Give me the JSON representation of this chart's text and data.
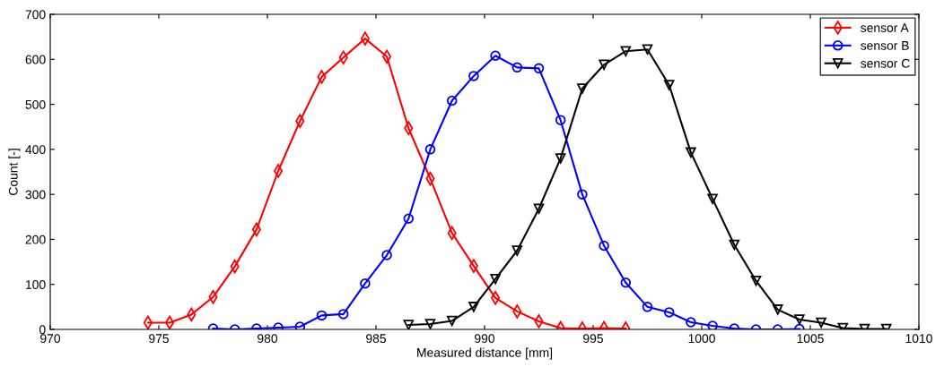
{
  "chart_data": {
    "type": "line",
    "xlabel": "Measured distance [mm]",
    "ylabel": "Count [-]",
    "xlim": [
      970,
      1010
    ],
    "xticks": [
      970,
      975,
      980,
      985,
      990,
      995,
      1000,
      1005,
      1010
    ],
    "ylim": [
      0,
      700
    ],
    "yticks": [
      0,
      100,
      200,
      300,
      400,
      500,
      600,
      700
    ],
    "grid": false,
    "legend": "top right",
    "series": [
      {
        "name": "sensor A",
        "color": "#ff0000",
        "marker": "diamond",
        "x": [
          974.5,
          975.5,
          976.5,
          977.5,
          978.5,
          979.5,
          980.5,
          981.5,
          982.5,
          983.5,
          984.5,
          985.5,
          986.5,
          987.5,
          988.5,
          989.5,
          990.5,
          991.5,
          992.5,
          993.5,
          994.5,
          995.5,
          996.5
        ],
        "values": [
          15,
          15,
          33,
          72,
          140,
          222,
          352,
          463,
          561,
          604,
          646,
          606,
          447,
          335,
          214,
          141,
          70,
          40,
          18,
          3,
          2,
          3,
          2
        ]
      },
      {
        "name": "sensor B",
        "color": "#0000ff",
        "marker": "circle",
        "x": [
          977.5,
          978.5,
          979.5,
          980.5,
          981.5,
          982.5,
          983.5,
          984.5,
          985.5,
          986.5,
          987.5,
          988.5,
          989.5,
          990.5,
          991.5,
          992.5,
          993.5,
          994.5,
          995.5,
          996.5,
          997.5,
          998.5,
          999.5,
          1000.5,
          1001.5,
          1002.5,
          1003.5,
          1004.5
        ],
        "values": [
          2,
          0,
          2,
          4,
          6,
          31,
          34,
          102,
          165,
          246,
          400,
          508,
          563,
          608,
          582,
          580,
          465,
          300,
          186,
          104,
          50,
          38,
          16,
          8,
          2,
          0,
          0,
          1
        ]
      },
      {
        "name": "sensor C",
        "color": "#000000",
        "marker": "triangle",
        "x": [
          986.5,
          987.5,
          988.5,
          989.5,
          990.5,
          991.5,
          992.5,
          993.5,
          994.5,
          995.5,
          996.5,
          997.5,
          998.5,
          999.5,
          1000.5,
          1001.5,
          1002.5,
          1003.5,
          1004.5,
          1005.5,
          1006.5,
          1007.5,
          1008.5
        ],
        "values": [
          10,
          12,
          19,
          50,
          112,
          175,
          268,
          380,
          535,
          588,
          618,
          622,
          543,
          393,
          290,
          188,
          108,
          44,
          22,
          15,
          3,
          1,
          1
        ]
      }
    ]
  }
}
